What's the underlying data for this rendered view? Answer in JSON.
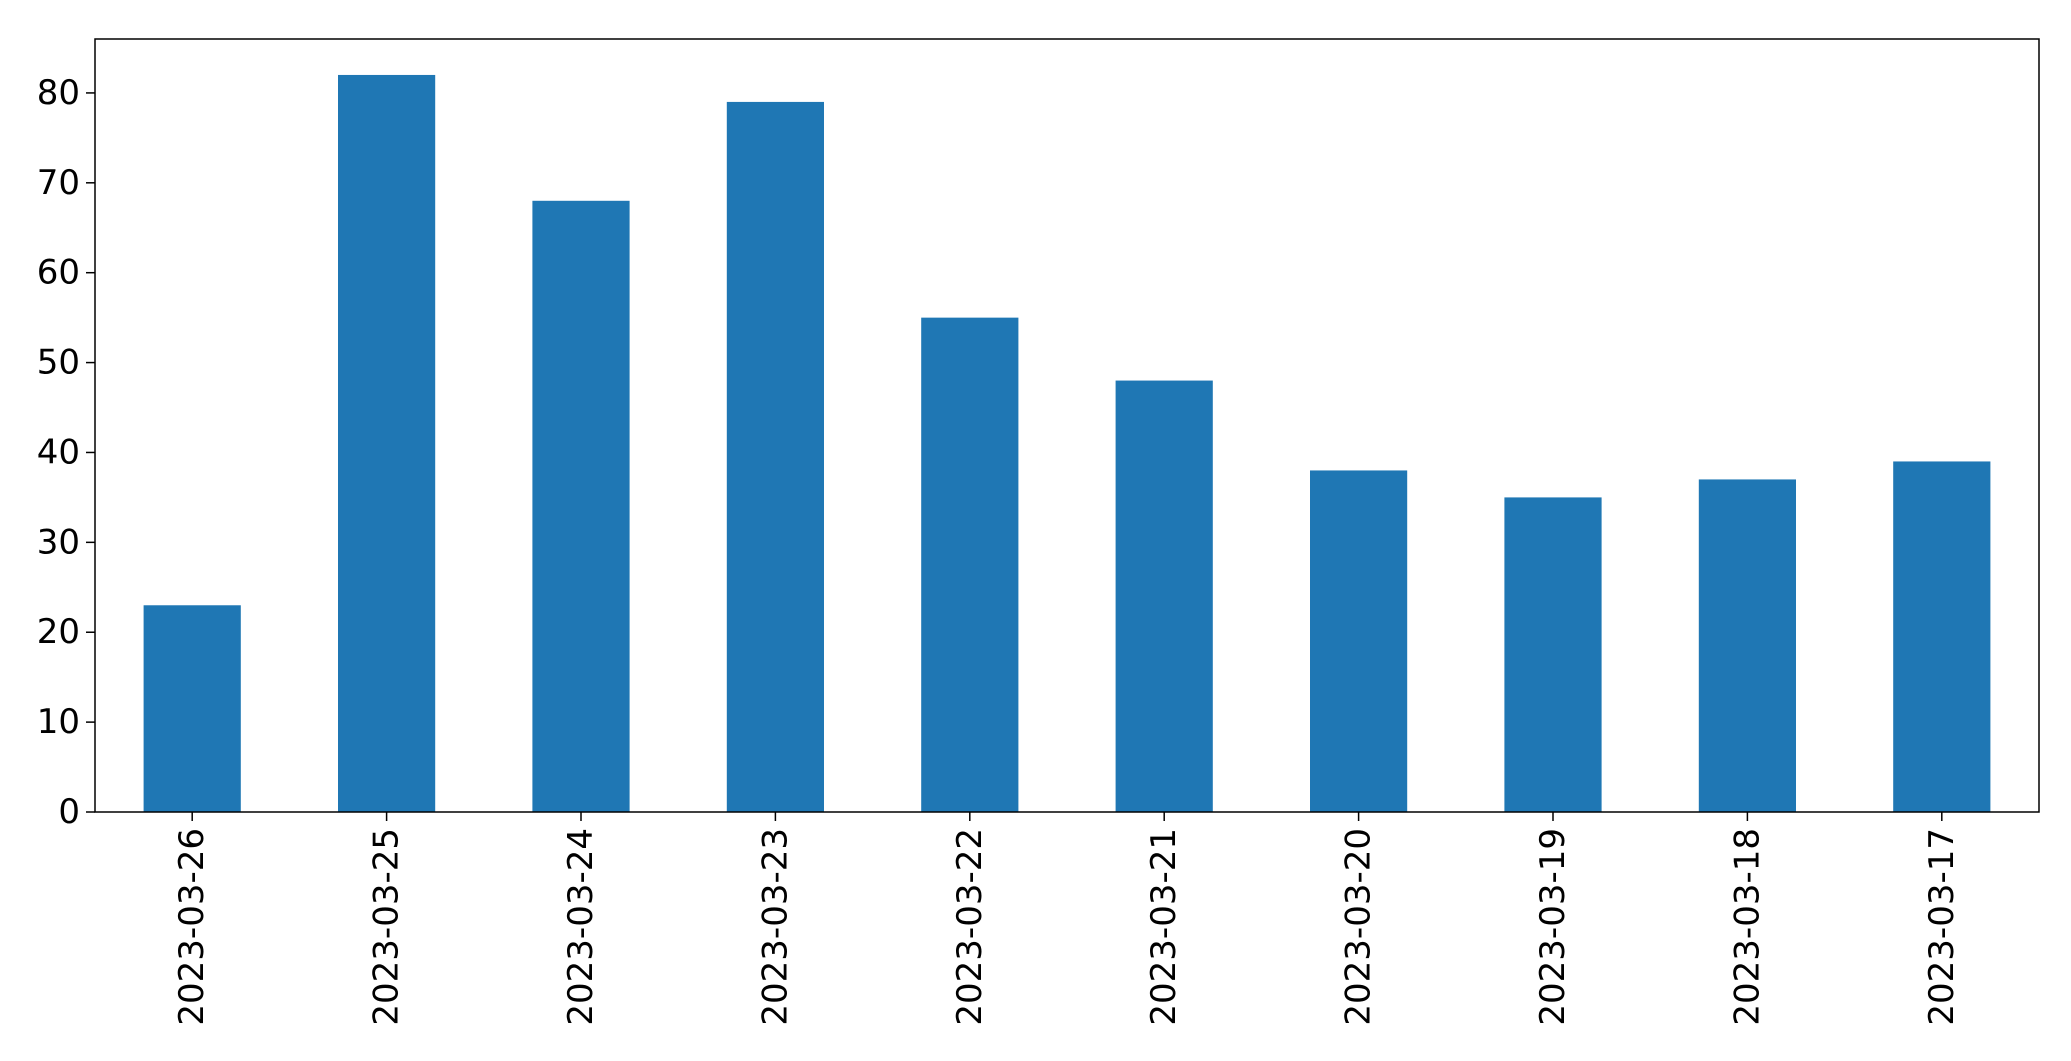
{
  "chart_data": {
    "type": "bar",
    "title": "",
    "xlabel": "",
    "ylabel": "",
    "categories": [
      "2023-03-26",
      "2023-03-25",
      "2023-03-24",
      "2023-03-23",
      "2023-03-22",
      "2023-03-21",
      "2023-03-20",
      "2023-03-19",
      "2023-03-18",
      "2023-03-17"
    ],
    "values": [
      23,
      82,
      68,
      79,
      55,
      48,
      38,
      35,
      37,
      39
    ],
    "ylim": [
      0,
      86
    ],
    "yticks": [
      0,
      10,
      20,
      30,
      40,
      50,
      60,
      70,
      80
    ],
    "ytick_labels": [
      "0",
      "10",
      "20",
      "30",
      "40",
      "50",
      "60",
      "70",
      "80"
    ],
    "xtick_rotation": "vertical",
    "grid": false,
    "legend": "none",
    "bar_color": "#1f77b4"
  }
}
